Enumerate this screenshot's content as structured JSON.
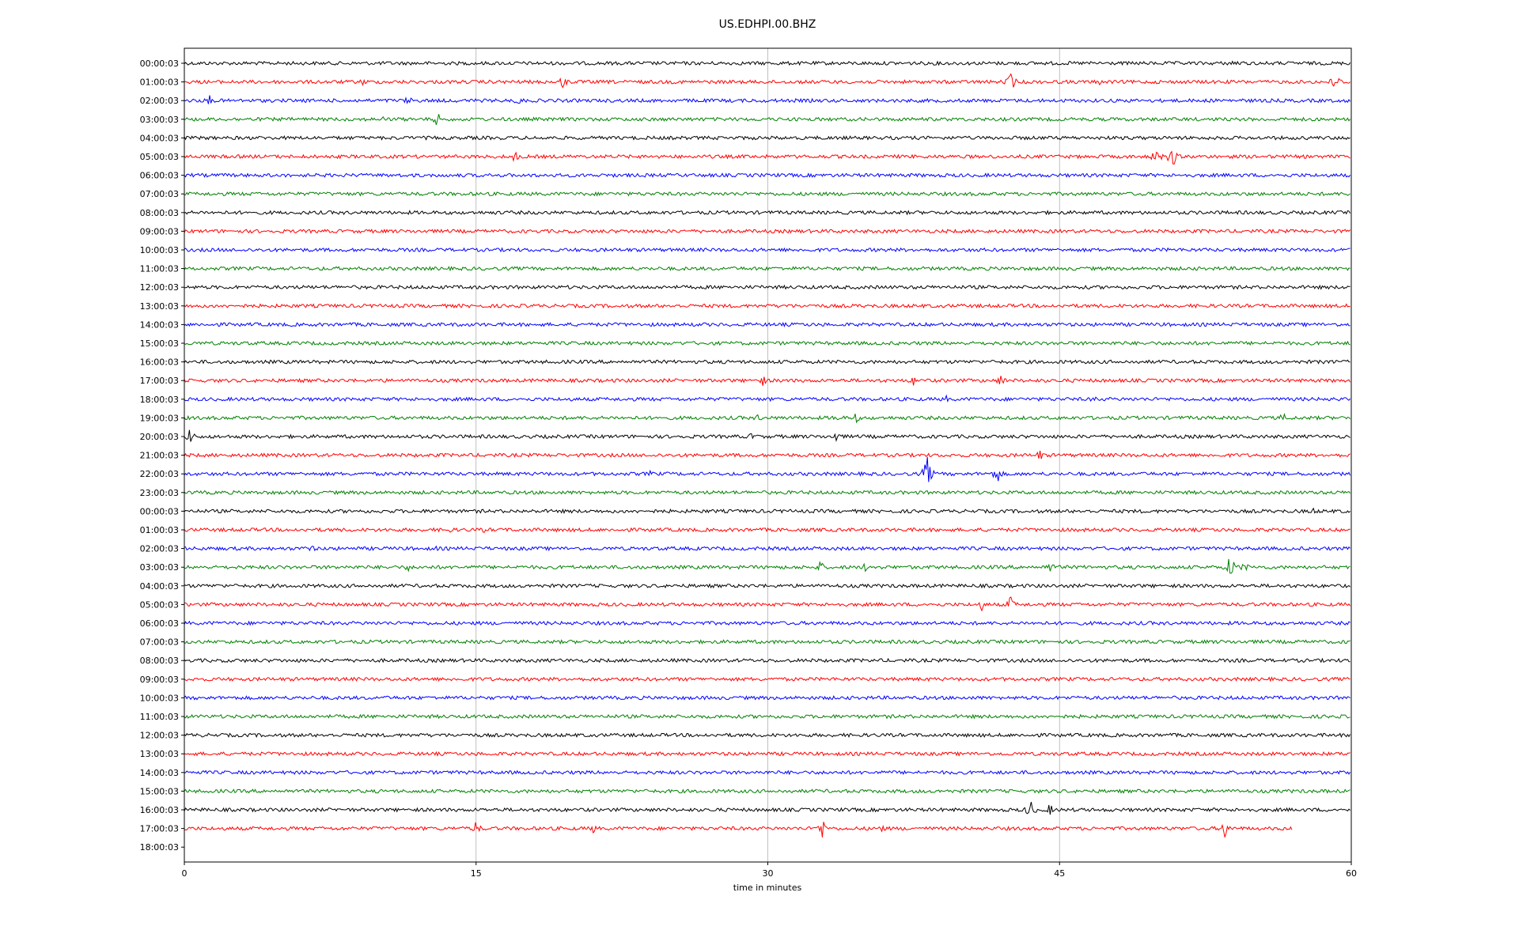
{
  "chart_data": {
    "type": "line",
    "title": "US.EDHPI.00.BHZ",
    "xlabel": "time in minutes",
    "ylabel": "",
    "xlim": [
      0,
      60
    ],
    "x_ticks": [
      "0",
      "15",
      "30",
      "45",
      "60"
    ],
    "x_tick_values": [
      0,
      15,
      30,
      45,
      60
    ],
    "grid": "vertical",
    "trace_colors": [
      "#000000",
      "#ff0000",
      "#0000ff",
      "#008000"
    ],
    "row_labels": [
      "00:00:03",
      "01:00:03",
      "02:00:03",
      "03:00:03",
      "04:00:03",
      "05:00:03",
      "06:00:03",
      "07:00:03",
      "08:00:03",
      "09:00:03",
      "10:00:03",
      "11:00:03",
      "12:00:03",
      "13:00:03",
      "14:00:03",
      "15:00:03",
      "16:00:03",
      "17:00:03",
      "18:00:03",
      "19:00:03",
      "20:00:03",
      "21:00:03",
      "22:00:03",
      "23:00:03",
      "00:00:03",
      "01:00:03",
      "02:00:03",
      "03:00:03",
      "04:00:03",
      "05:00:03",
      "06:00:03",
      "07:00:03",
      "08:00:03",
      "09:00:03",
      "10:00:03",
      "11:00:03",
      "12:00:03",
      "13:00:03",
      "14:00:03",
      "15:00:03",
      "16:00:03",
      "17:00:03",
      "18:00:03"
    ],
    "trace_end_minutes": [
      60,
      60,
      60,
      60,
      60,
      60,
      60,
      60,
      60,
      60,
      60,
      60,
      60,
      60,
      60,
      60,
      60,
      60,
      60,
      60,
      60,
      60,
      60,
      60,
      60,
      60,
      60,
      60,
      60,
      60,
      60,
      60,
      60,
      60,
      60,
      60,
      60,
      60,
      60,
      60,
      60,
      57,
      0
    ],
    "events": [
      {
        "row": 0,
        "t": 54.0,
        "amp": 7
      },
      {
        "row": 0,
        "t": 57.5,
        "amp": 3
      },
      {
        "row": 1,
        "t": 9.2,
        "amp": 6
      },
      {
        "row": 1,
        "t": 19.5,
        "amp": 10
      },
      {
        "row": 1,
        "t": 35.0,
        "amp": 6
      },
      {
        "row": 1,
        "t": 42.5,
        "amp": 14
      },
      {
        "row": 1,
        "t": 47.0,
        "amp": 5
      },
      {
        "row": 1,
        "t": 59.2,
        "amp": 14
      },
      {
        "row": 2,
        "t": 1.3,
        "amp": 8
      },
      {
        "row": 2,
        "t": 3.1,
        "amp": 5
      },
      {
        "row": 2,
        "t": 11.5,
        "amp": 7
      },
      {
        "row": 2,
        "t": 17.2,
        "amp": 8
      },
      {
        "row": 2,
        "t": 26.3,
        "amp": 5
      },
      {
        "row": 3,
        "t": 10.2,
        "amp": 4
      },
      {
        "row": 3,
        "t": 13.0,
        "amp": 10
      },
      {
        "row": 5,
        "t": 17.0,
        "amp": 8
      },
      {
        "row": 5,
        "t": 50.0,
        "amp": 13
      },
      {
        "row": 5,
        "t": 50.8,
        "amp": 16
      },
      {
        "row": 7,
        "t": 53.5,
        "amp": 4
      },
      {
        "row": 17,
        "t": 29.7,
        "amp": 9
      },
      {
        "row": 17,
        "t": 37.5,
        "amp": 7
      },
      {
        "row": 17,
        "t": 42.0,
        "amp": 9
      },
      {
        "row": 18,
        "t": 39.2,
        "amp": 5
      },
      {
        "row": 18,
        "t": 46.8,
        "amp": 5
      },
      {
        "row": 19,
        "t": 29.5,
        "amp": 6
      },
      {
        "row": 19,
        "t": 33.5,
        "amp": 6
      },
      {
        "row": 19,
        "t": 34.5,
        "amp": 8
      },
      {
        "row": 19,
        "t": 56.5,
        "amp": 7
      },
      {
        "row": 20,
        "t": 0.3,
        "amp": 11
      },
      {
        "row": 20,
        "t": 29.2,
        "amp": 6
      },
      {
        "row": 20,
        "t": 33.5,
        "amp": 8
      },
      {
        "row": 21,
        "t": 44.0,
        "amp": 8
      },
      {
        "row": 22,
        "t": 38.2,
        "amp": 22
      },
      {
        "row": 22,
        "t": 41.8,
        "amp": 13
      },
      {
        "row": 22,
        "t": 24.0,
        "amp": 5
      },
      {
        "row": 24,
        "t": 58.0,
        "amp": 6
      },
      {
        "row": 25,
        "t": 13.6,
        "amp": 5
      },
      {
        "row": 25,
        "t": 15.5,
        "amp": 6
      },
      {
        "row": 26,
        "t": 6.5,
        "amp": 7
      },
      {
        "row": 26,
        "t": 13.0,
        "amp": 4
      },
      {
        "row": 27,
        "t": 11.5,
        "amp": 6
      },
      {
        "row": 27,
        "t": 32.7,
        "amp": 9
      },
      {
        "row": 27,
        "t": 35.0,
        "amp": 6
      },
      {
        "row": 27,
        "t": 44.5,
        "amp": 9
      },
      {
        "row": 27,
        "t": 53.8,
        "amp": 18
      },
      {
        "row": 27,
        "t": 54.5,
        "amp": 8
      },
      {
        "row": 29,
        "t": 41.0,
        "amp": 8
      },
      {
        "row": 29,
        "t": 42.5,
        "amp": 12
      },
      {
        "row": 40,
        "t": 43.5,
        "amp": 14
      },
      {
        "row": 40,
        "t": 44.5,
        "amp": 8
      },
      {
        "row": 41,
        "t": 15.0,
        "amp": 10
      },
      {
        "row": 41,
        "t": 21.0,
        "amp": 7
      },
      {
        "row": 41,
        "t": 32.8,
        "amp": 14
      },
      {
        "row": 41,
        "t": 35.8,
        "amp": 7
      },
      {
        "row": 41,
        "t": 53.5,
        "amp": 13
      }
    ]
  }
}
